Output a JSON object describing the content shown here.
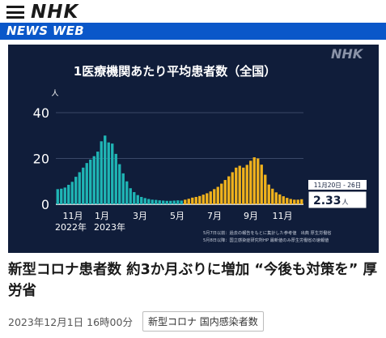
{
  "header": {
    "logo": "NHK",
    "section_banner": "NEWS WEB"
  },
  "chart_data": {
    "type": "bar",
    "title": "1医療機関あたり平均患者数（全国）",
    "broadcaster_logo": "NHK",
    "yunit": "人",
    "ylim": [
      0,
      45
    ],
    "yticks": [
      "0",
      "20",
      "40"
    ],
    "xtick_labels": [
      "11月",
      "1月",
      "3月",
      "5月",
      "7月",
      "9月",
      "11月"
    ],
    "year_labels": [
      "2022年",
      "2023年"
    ],
    "series": [
      {
        "color": "#1fb5b5",
        "values": [
          6.6,
          6.8,
          7.3,
          8.5,
          9.8,
          12.0,
          14.0,
          16.0,
          18.0,
          19.5,
          21.0,
          23.0,
          27.5,
          30.0,
          27.0,
          26.5,
          22.0,
          17.5,
          13.5,
          10.0,
          7.0,
          5.3,
          4.0,
          3.2,
          2.7,
          2.3,
          2.0,
          1.9,
          1.7,
          1.6,
          1.5,
          1.5,
          1.6,
          1.7,
          1.6
        ]
      },
      {
        "color": "#f0b21c",
        "values": [
          2.0,
          2.4,
          2.9,
          3.2,
          3.6,
          4.2,
          4.8,
          5.6,
          6.6,
          7.6,
          9.0,
          10.6,
          12.2,
          14.0,
          16.0,
          16.8,
          16.0,
          17.2,
          19.0,
          20.5,
          20.0,
          17.3,
          12.9,
          8.6,
          6.8,
          5.2,
          4.3,
          3.5,
          2.8,
          2.3,
          2.0,
          2.0,
          2.2
        ]
      }
    ],
    "callout": {
      "period": "11月20日 - 26日",
      "value": "2.33",
      "unit": "人"
    },
    "source_notes": [
      "5月7日以前：過去の報告をもとに集計した参考値　出典 厚生労働省",
      "5月8日以降：国立感染症研究所HP 最新値のみ厚生労働省の速報値"
    ]
  },
  "article": {
    "headline": "新型コロナ患者数 約3か月ぶりに増加 “今後も対策を” 厚労省",
    "date": "2023年12月1日 16時00分",
    "tag": "新型コロナ 国内感染者数"
  }
}
